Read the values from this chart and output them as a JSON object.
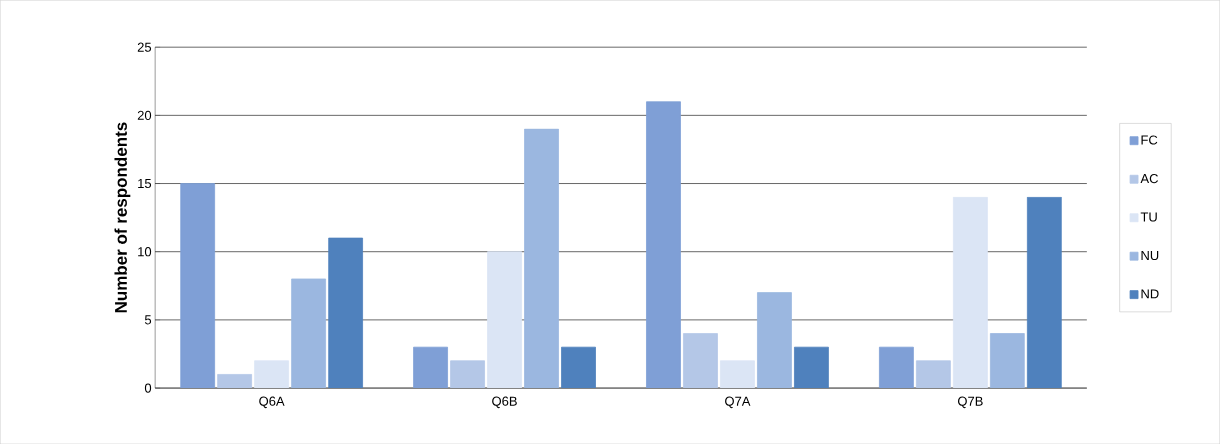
{
  "chart_data": {
    "type": "bar",
    "ylabel": "Number of respondents",
    "categories": [
      "Q6A",
      "Q6B",
      "Q7A",
      "Q7B"
    ],
    "series": [
      {
        "name": "FC",
        "color": "#7f9fd6",
        "values": [
          15,
          3,
          21,
          3
        ]
      },
      {
        "name": "AC",
        "color": "#b4c7e7",
        "values": [
          1,
          2,
          4,
          2
        ]
      },
      {
        "name": "TU",
        "color": "#dbe5f5",
        "values": [
          2,
          10,
          2,
          14
        ]
      },
      {
        "name": "NU",
        "color": "#9bb7e0",
        "values": [
          8,
          19,
          7,
          4
        ]
      },
      {
        "name": "ND",
        "color": "#4f81bd",
        "values": [
          11,
          3,
          3,
          14
        ]
      }
    ],
    "ylim": [
      0,
      25
    ],
    "yticks": [
      0,
      5,
      10,
      15,
      20,
      25
    ],
    "grid": "y",
    "legend": "right"
  }
}
